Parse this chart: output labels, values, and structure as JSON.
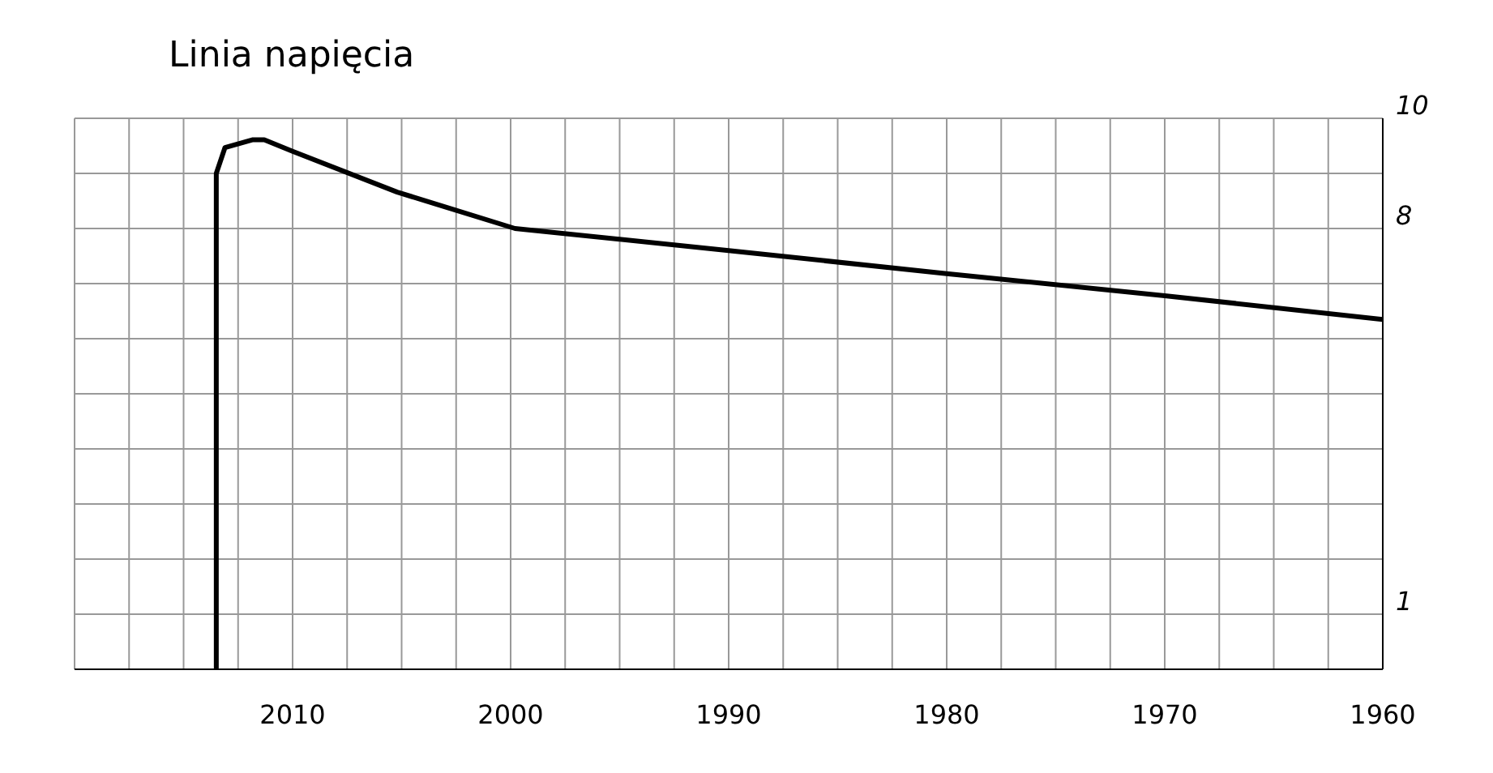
{
  "chart_data": {
    "type": "line",
    "title": "Linia napięcia",
    "x": [
      2013.5,
      2013.5,
      2013.1,
      2011.85,
      2011.3,
      2010,
      2005.2,
      1999.8,
      1990,
      1980,
      1970,
      1960
    ],
    "series": [
      {
        "color": "#000000",
        "values": [
          0,
          9.0,
          9.47,
          9.61,
          9.61,
          9.4,
          8.66,
          8.0,
          7.6,
          7.18,
          6.78,
          6.35
        ]
      }
    ],
    "xlim": [
      2020,
      1960
    ],
    "xticks": [
      {
        "value": 2020,
        "label": null
      },
      {
        "value": 2017.5,
        "label": null
      },
      {
        "value": 2015,
        "label": null
      },
      {
        "value": 2012.5,
        "label": null
      },
      2010,
      {
        "value": 2007.5,
        "label": null
      },
      {
        "value": 2005,
        "label": null
      },
      {
        "value": 2002.5,
        "label": null
      },
      2000,
      {
        "value": 1997.5,
        "label": null
      },
      {
        "value": 1995,
        "label": null
      },
      {
        "value": 1992.5,
        "label": null
      },
      1990,
      {
        "value": 1987.5,
        "label": null
      },
      {
        "value": 1985,
        "label": null
      },
      {
        "value": 1982.5,
        "label": null
      },
      1980,
      {
        "value": 1977.5,
        "label": null
      },
      {
        "value": 1975,
        "label": null
      },
      {
        "value": 1972.5,
        "label": null
      },
      1970,
      {
        "value": 1967.5,
        "label": null
      },
      {
        "value": 1965,
        "label": null
      },
      {
        "value": 1962.5,
        "label": null
      },
      1960
    ],
    "ylim": [
      0,
      10
    ],
    "yticks": [
      {
        "value": 0,
        "label": null
      },
      1,
      {
        "value": 2,
        "label": null
      },
      {
        "value": 3,
        "label": null
      },
      {
        "value": 4,
        "label": null
      },
      {
        "value": 5,
        "label": null
      },
      {
        "value": 6,
        "label": null
      },
      {
        "value": 7,
        "label": null
      },
      8,
      {
        "value": 9,
        "label": null
      },
      10
    ],
    "grid": true,
    "marker": "none",
    "line_style": "solid",
    "legend": false
  }
}
